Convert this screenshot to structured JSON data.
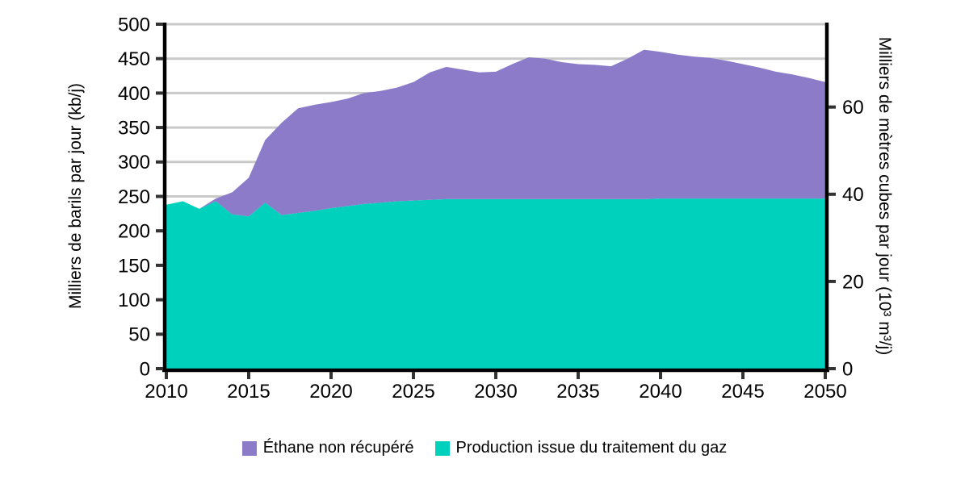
{
  "chart_data": {
    "type": "area",
    "stacked": true,
    "grid_color": "#C9C9C9",
    "background": "#FFFFFF",
    "axis_line_color": "#000000",
    "tick_color": "#333333",
    "x": [
      2010,
      2011,
      2012,
      2013,
      2014,
      2015,
      2016,
      2017,
      2018,
      2019,
      2020,
      2021,
      2022,
      2023,
      2024,
      2025,
      2026,
      2027,
      2028,
      2029,
      2030,
      2031,
      2032,
      2033,
      2034,
      2035,
      2036,
      2037,
      2038,
      2039,
      2040,
      2041,
      2042,
      2043,
      2044,
      2045,
      2046,
      2047,
      2048,
      2049,
      2050
    ],
    "series": [
      {
        "name": "Production issue du traitement du gaz",
        "color": "#00D1BD",
        "values": [
          238,
          243,
          232,
          243,
          224,
          221,
          241,
          223,
          226,
          229,
          233,
          236,
          239,
          241,
          243,
          244,
          245,
          246,
          246,
          246,
          246,
          246,
          246,
          246,
          246,
          246,
          246,
          246,
          246,
          246,
          247,
          247,
          247,
          247,
          247,
          247,
          247,
          247,
          247,
          247,
          247
        ]
      },
      {
        "name": "Éthane non récupéré",
        "color": "#8C7BC9",
        "values": [
          0,
          0,
          0,
          4,
          32,
          56,
          91,
          134,
          152,
          154,
          154,
          156,
          161,
          162,
          165,
          172,
          185,
          192,
          188,
          184,
          185,
          196,
          206,
          204,
          199,
          196,
          195,
          193,
          204,
          217,
          213,
          209,
          206,
          204,
          200,
          195,
          190,
          184,
          180,
          175,
          169
        ]
      }
    ],
    "left_axis": {
      "label": "Milliers de barils par jour (kb/j)",
      "ticks": [
        0,
        50,
        100,
        150,
        200,
        250,
        300,
        350,
        400,
        450,
        500
      ],
      "range": [
        0,
        500
      ]
    },
    "right_axis": {
      "label": "Milliers de mètres cubes par jour (10³ m³/j)",
      "ticks": [
        0,
        20,
        40,
        60
      ],
      "range": [
        0,
        79
      ]
    },
    "x_axis": {
      "ticks": [
        2010,
        2015,
        2020,
        2025,
        2030,
        2035,
        2040,
        2045,
        2050
      ],
      "range": [
        2010,
        2050
      ]
    },
    "legend": [
      "Éthane non récupéré",
      "Production issue du traitement du gaz"
    ]
  }
}
